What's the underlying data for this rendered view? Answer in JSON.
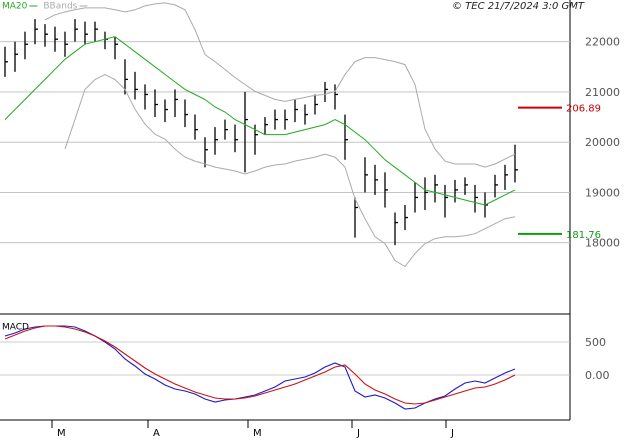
{
  "header": "© TEC 21/7/2024 3:0 GMT",
  "chart_data": [
    {
      "type": "ohlc",
      "xlim": [
        -0.5,
        56.5
      ],
      "xticks": [
        {
          "value": 4.7,
          "label": "M"
        },
        {
          "value": 14.3,
          "label": "A"
        },
        {
          "value": 24.3,
          "label": "M"
        },
        {
          "value": 34.7,
          "label": "J"
        },
        {
          "value": 44.1,
          "label": "J"
        }
      ],
      "ylim": [
        16600,
        22830
      ],
      "yticks": [
        18000,
        19000,
        20000,
        21000,
        22000
      ],
      "grid": true,
      "color": "#000000",
      "high": [
        21900,
        22000,
        22200,
        22450,
        22350,
        22300,
        22200,
        22450,
        22400,
        22400,
        22200,
        22100,
        21650,
        21400,
        21150,
        21050,
        20850,
        21050,
        20850,
        20550,
        20100,
        20300,
        20450,
        20350,
        21000,
        20350,
        20500,
        20650,
        20650,
        20850,
        20750,
        20950,
        21200,
        21150,
        20550,
        18900,
        19700,
        19550,
        19400,
        18600,
        18750,
        19200,
        19300,
        19350,
        19150,
        19250,
        19300,
        19150,
        19000,
        19350,
        19550,
        19950
      ],
      "low": [
        21300,
        21400,
        21650,
        21950,
        21900,
        21800,
        21700,
        22000,
        21950,
        22000,
        21850,
        21650,
        20950,
        20850,
        20650,
        20500,
        20400,
        20500,
        20300,
        20050,
        19500,
        19750,
        20050,
        19800,
        19400,
        19750,
        20150,
        20250,
        20250,
        20400,
        20350,
        20550,
        20800,
        20650,
        19650,
        18100,
        19000,
        18950,
        18700,
        17950,
        18250,
        18600,
        18650,
        18800,
        18500,
        18800,
        18950,
        18600,
        18500,
        18900,
        19050,
        19200
      ],
      "close": [
        21600,
        21750,
        21950,
        22250,
        22150,
        22050,
        21950,
        22250,
        22150,
        22250,
        22050,
        21950,
        21250,
        21050,
        20950,
        20750,
        20650,
        20850,
        20550,
        20250,
        19850,
        20050,
        20250,
        20050,
        20450,
        20150,
        20350,
        20450,
        20450,
        20650,
        20550,
        20750,
        21050,
        20950,
        20050,
        18700,
        19350,
        19250,
        19050,
        18400,
        18500,
        18900,
        19000,
        19150,
        18900,
        19050,
        19150,
        18900,
        18750,
        19150,
        19350,
        19450
      ],
      "series": [
        {
          "name": "MA20",
          "color": "#22aa22",
          "values": [
            20450,
            20650,
            20850,
            21050,
            21250,
            21450,
            21650,
            21800,
            21950,
            22000,
            22050,
            22100,
            21950,
            21800,
            21650,
            21500,
            21350,
            21200,
            21050,
            20950,
            20850,
            20700,
            20600,
            20450,
            20350,
            20250,
            20150,
            20150,
            20150,
            20200,
            20250,
            20300,
            20350,
            20450,
            20350,
            20200,
            20050,
            19850,
            19650,
            19500,
            19350,
            19200,
            19050,
            19000,
            18950,
            18900,
            18850,
            18800,
            18750,
            18850,
            18950,
            19050
          ]
        },
        {
          "name": "BBands",
          "color": "#aaaaaa",
          "upper": [
            null,
            null,
            null,
            null,
            22436,
            22535,
            22594,
            22634,
            22673,
            22673,
            22673,
            22634,
            22594,
            22634,
            22713,
            22752,
            22772,
            22733,
            22634,
            22238,
            21743,
            21604,
            21446,
            21287,
            21149,
            21010,
            20931,
            20852,
            20812,
            20852,
            20891,
            20931,
            20951,
            21010,
            21347,
            21604,
            21683,
            21683,
            21644,
            21604,
            21545,
            21149,
            20258,
            19862,
            19624,
            19565,
            19565,
            19565,
            19505,
            19565,
            19664,
            19762
          ],
          "lower": [
            null,
            null,
            null,
            null,
            null,
            null,
            19862,
            20456,
            21050,
            21248,
            21347,
            21248,
            21050,
            20654,
            20357,
            20159,
            20060,
            19862,
            19703,
            19624,
            19565,
            19505,
            19466,
            19426,
            19367,
            19426,
            19505,
            19545,
            19565,
            19624,
            19664,
            19703,
            19763,
            19703,
            19505,
            18872,
            18476,
            18119,
            17981,
            17644,
            17525,
            17783,
            17981,
            18080,
            18119,
            18119,
            18139,
            18179,
            18278,
            18377,
            18476,
            18515
          ]
        }
      ],
      "levels": [
        {
          "value": 20689,
          "label": "206.89",
          "color": "#cc0000"
        },
        {
          "value": 18176,
          "label": "181.76",
          "color": "#119911"
        }
      ]
    },
    {
      "type": "line",
      "title": "MACD",
      "xlim": [
        -0.5,
        56.5
      ],
      "ylim": [
        -682,
        909
      ],
      "yticks": [
        {
          "value": 0,
          "label": "0.00"
        },
        500
      ],
      "grid": true,
      "series": [
        {
          "color": "#1a1acc",
          "values": [
            591,
            636,
            697,
            727,
            742,
            742,
            742,
            727,
            667,
            591,
            500,
            394,
            242,
            136,
            15,
            -61,
            -152,
            -212,
            -242,
            -288,
            -364,
            -409,
            -379,
            -364,
            -333,
            -303,
            -242,
            -182,
            -91,
            -61,
            -30,
            30,
            121,
            182,
            121,
            -242,
            -333,
            -303,
            -348,
            -424,
            -515,
            -500,
            -424,
            -364,
            -318,
            -212,
            -121,
            -91,
            -121,
            -45,
            30,
            91
          ]
        },
        {
          "color": "#cc1111",
          "values": [
            545,
            606,
            667,
            712,
            742,
            742,
            727,
            697,
            652,
            591,
            515,
            424,
            318,
            212,
            106,
            15,
            -61,
            -136,
            -197,
            -258,
            -303,
            -348,
            -364,
            -364,
            -348,
            -318,
            -273,
            -227,
            -182,
            -136,
            -76,
            -15,
            45,
            121,
            152,
            15,
            -136,
            -227,
            -288,
            -364,
            -424,
            -439,
            -424,
            -379,
            -333,
            -288,
            -242,
            -197,
            -182,
            -136,
            -76,
            0
          ]
        }
      ]
    }
  ]
}
